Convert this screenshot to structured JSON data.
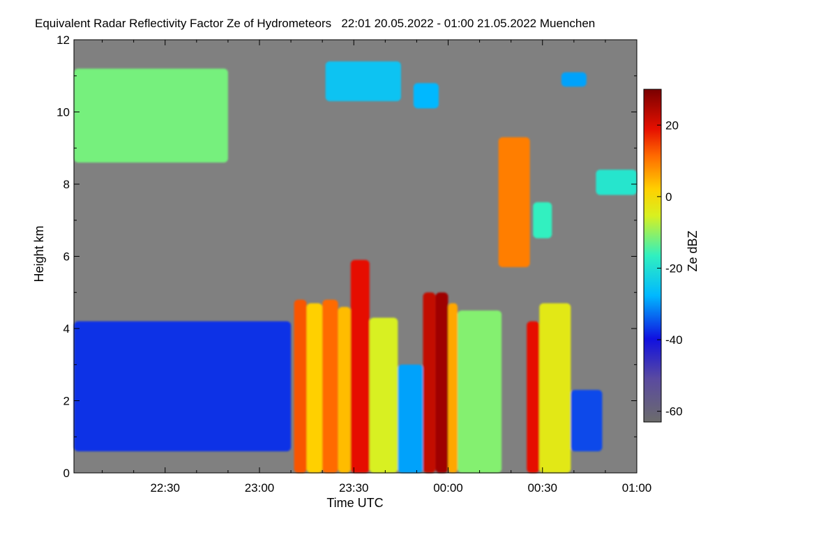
{
  "chart_data": {
    "type": "heatmap",
    "title": "Equivalent Radar Reflectivity Factor Ze of Hydrometeors   22:01 20.05.2022 - 01:00 21.05.2022 Muenchen",
    "xlabel": "Time UTC",
    "ylabel": "Height km",
    "x_range_minutes_utc": [
      1321,
      1500
    ],
    "ylim": [
      0,
      12
    ],
    "x_ticks": [
      {
        "label": "22:30",
        "value": 1350
      },
      {
        "label": "23:00",
        "value": 1380
      },
      {
        "label": "23:30",
        "value": 1410
      },
      {
        "label": "00:00",
        "value": 1440
      },
      {
        "label": "00:30",
        "value": 1470
      },
      {
        "label": "01:00",
        "value": 1500
      }
    ],
    "y_ticks": [
      {
        "label": "0",
        "value": 0
      },
      {
        "label": "2",
        "value": 2
      },
      {
        "label": "4",
        "value": 4
      },
      {
        "label": "6",
        "value": 6
      },
      {
        "label": "8",
        "value": 8
      },
      {
        "label": "10",
        "value": 10
      },
      {
        "label": "12",
        "value": 12
      }
    ],
    "colorbar": {
      "label": "Ze dBZ",
      "range": [
        -63,
        30
      ],
      "ticks": [
        {
          "label": "20",
          "value": 20
        },
        {
          "label": "0",
          "value": 0
        },
        {
          "label": "-20",
          "value": -20
        },
        {
          "label": "-40",
          "value": -40
        },
        {
          "label": "-60",
          "value": -60
        }
      ]
    },
    "background_color": "#808080",
    "echo_features": [
      {
        "t0": 1321,
        "t1": 1370,
        "h0": 8.6,
        "h1": 11.2,
        "dbz": -15
      },
      {
        "t0": 1401,
        "t1": 1425,
        "h0": 10.3,
        "h1": 11.4,
        "dbz": -28
      },
      {
        "t0": 1429,
        "t1": 1437,
        "h0": 10.1,
        "h1": 10.8,
        "dbz": -30
      },
      {
        "t0": 1476,
        "t1": 1484,
        "h0": 10.7,
        "h1": 11.1,
        "dbz": -32
      },
      {
        "t0": 1456,
        "t1": 1466,
        "h0": 5.7,
        "h1": 9.3,
        "dbz": 8
      },
      {
        "t0": 1467,
        "t1": 1473,
        "h0": 6.5,
        "h1": 7.5,
        "dbz": -20
      },
      {
        "t0": 1487,
        "t1": 1500,
        "h0": 7.7,
        "h1": 8.4,
        "dbz": -22
      },
      {
        "t0": 1321,
        "t1": 1390,
        "h0": 0.6,
        "h1": 4.2,
        "dbz": -42
      },
      {
        "t0": 1391,
        "t1": 1395,
        "h0": 0.0,
        "h1": 4.8,
        "dbz": 12
      },
      {
        "t0": 1395,
        "t1": 1400,
        "h0": 0.0,
        "h1": 4.7,
        "dbz": 0
      },
      {
        "t0": 1400,
        "t1": 1405,
        "h0": 0.0,
        "h1": 4.8,
        "dbz": 10
      },
      {
        "t0": 1405,
        "t1": 1409,
        "h0": 0.0,
        "h1": 4.6,
        "dbz": 2
      },
      {
        "t0": 1409,
        "t1": 1415,
        "h0": 0.0,
        "h1": 5.9,
        "dbz": 18
      },
      {
        "t0": 1415,
        "t1": 1424,
        "h0": 0.0,
        "h1": 4.3,
        "dbz": -8
      },
      {
        "t0": 1424,
        "t1": 1432,
        "h0": 0.0,
        "h1": 3.0,
        "dbz": -32
      },
      {
        "t0": 1432,
        "t1": 1436,
        "h0": 0.0,
        "h1": 5.0,
        "dbz": 22
      },
      {
        "t0": 1436,
        "t1": 1440,
        "h0": 0.0,
        "h1": 5.0,
        "dbz": 26
      },
      {
        "t0": 1440,
        "t1": 1443,
        "h0": 0.0,
        "h1": 4.7,
        "dbz": 4
      },
      {
        "t0": 1443,
        "t1": 1457,
        "h0": 0.0,
        "h1": 4.5,
        "dbz": -14
      },
      {
        "t0": 1465,
        "t1": 1469,
        "h0": 0.0,
        "h1": 4.2,
        "dbz": 18
      },
      {
        "t0": 1469,
        "t1": 1479,
        "h0": 0.0,
        "h1": 4.7,
        "dbz": -6
      },
      {
        "t0": 1479,
        "t1": 1489,
        "h0": 0.6,
        "h1": 2.3,
        "dbz": -40
      }
    ]
  }
}
